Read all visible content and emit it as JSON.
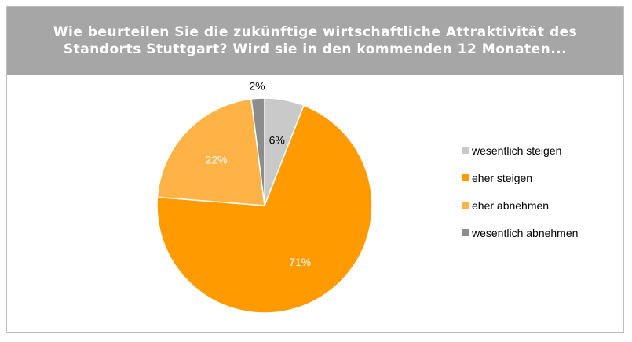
{
  "chart_data": {
    "type": "pie",
    "title": "Wie beurteilen Sie die zukünftige wirtschaftliche Attraktivität des Standorts Stuttgart? Wird sie in den kommenden 12 Monaten...",
    "categories": [
      "wesentlich steigen",
      "eher steigen",
      "eher abnehmen",
      "wesentlich abnehmen"
    ],
    "values": [
      6,
      71,
      22,
      2
    ],
    "labels": [
      "6%",
      "71%",
      "22%",
      "2%"
    ],
    "colors": [
      "#c9c9c9",
      "#ff9b00",
      "#ffb347",
      "#8c8c8c"
    ],
    "label_colors": [
      "#000000",
      "#ffffff",
      "#ffffff",
      "#000000"
    ],
    "legend_position": "right"
  }
}
